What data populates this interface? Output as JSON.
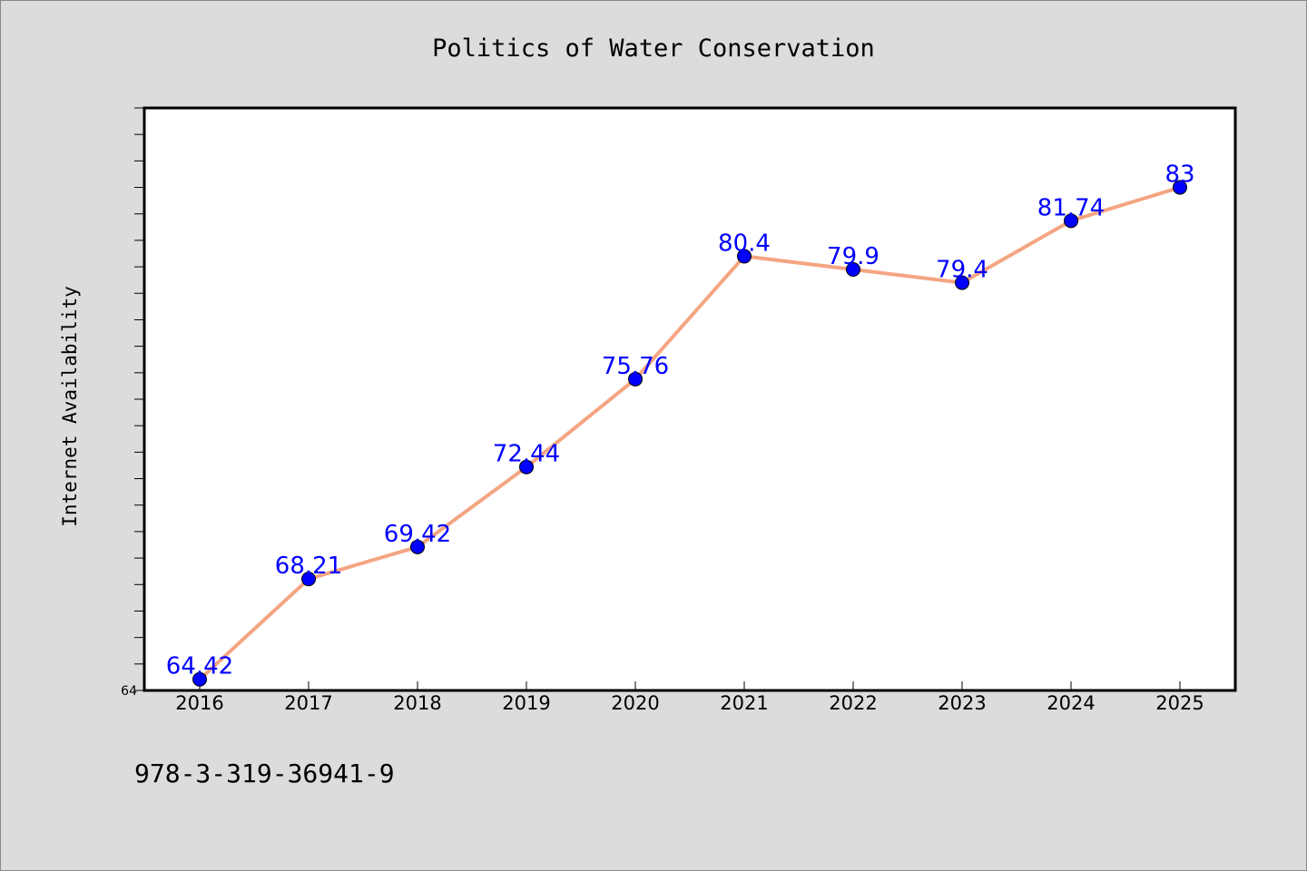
{
  "chart_data": {
    "type": "line",
    "title": "Politics of Water Conservation",
    "xlabel": "",
    "ylabel": "Internet Availability",
    "categories": [
      "2016",
      "2017",
      "2018",
      "2019",
      "2020",
      "2021",
      "2022",
      "2023",
      "2024",
      "2025"
    ],
    "series": [
      {
        "values": [
          64.42,
          68.21,
          69.42,
          72.44,
          75.76,
          80.4,
          79.9,
          79.4,
          81.74,
          83
        ]
      }
    ],
    "data_labels": [
      "64.42",
      "68.21",
      "69.42",
      "72.44",
      "75.76",
      "80.4",
      "79.9",
      "79.4",
      "81.74",
      "83"
    ],
    "y_tick_labels": [
      "64"
    ],
    "ylim": [
      64,
      86
    ],
    "grid": false,
    "legend": "none",
    "colors": {
      "line": "#f4a582",
      "marker": "#0000ff",
      "data_label": "#0000ff",
      "background": "#dcdcdc",
      "plot_background": "#ffffff"
    }
  },
  "footer": {
    "text": "978-3-319-36941-9"
  }
}
